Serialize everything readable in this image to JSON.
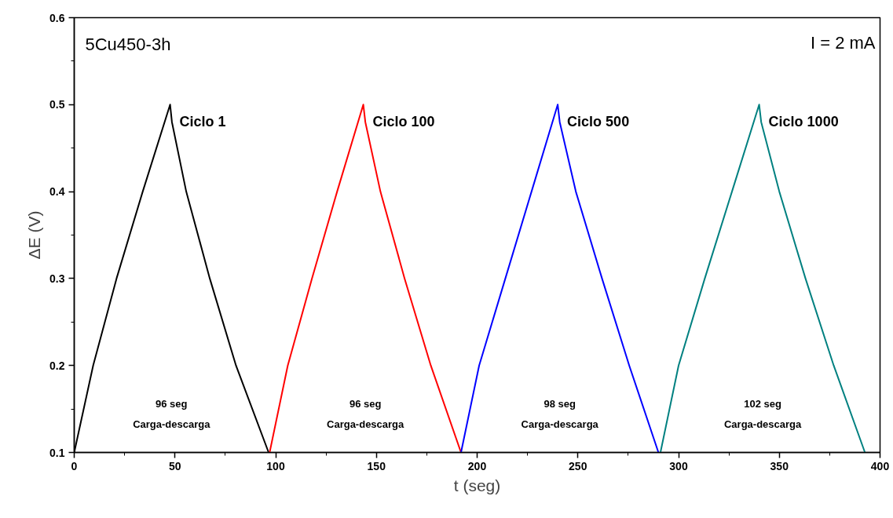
{
  "chart_data": {
    "type": "line",
    "title": "5Cu450-3h",
    "xlabel": "t (seg)",
    "ylabel": "ΔE (V)",
    "xlim": [
      0,
      400
    ],
    "ylim": [
      0.1,
      0.6
    ],
    "xticks": [
      0,
      50,
      100,
      150,
      200,
      250,
      300,
      350,
      400
    ],
    "yticks": [
      0.1,
      0.2,
      0.3,
      0.4,
      0.5,
      0.6
    ],
    "grid": false,
    "marker": "none",
    "line_style": "solid",
    "series": [
      {
        "name": "Ciclo 1",
        "color": "#000000",
        "x": [
          0,
          9.4,
          21,
          34,
          47.6,
          48.5,
          55.6,
          67.3,
          80.3,
          96.5
        ],
        "values": [
          0.1,
          0.2,
          0.3,
          0.4,
          0.5,
          0.48,
          0.4,
          0.3,
          0.2,
          0.1
        ]
      },
      {
        "name": "Ciclo 100",
        "color": "#ff0000",
        "x": [
          97,
          106,
          118,
          130.5,
          143.5,
          144.5,
          152,
          164,
          177,
          192
        ],
        "values": [
          0.1,
          0.2,
          0.3,
          0.4,
          0.5,
          0.48,
          0.4,
          0.3,
          0.2,
          0.1
        ]
      },
      {
        "name": "Ciclo 500",
        "color": "#0000ff",
        "x": [
          192,
          201,
          214,
          227,
          240,
          241,
          249,
          262,
          275.5,
          290
        ],
        "values": [
          0.1,
          0.2,
          0.3,
          0.4,
          0.5,
          0.48,
          0.4,
          0.3,
          0.2,
          0.1
        ]
      },
      {
        "name": "Ciclo 1000",
        "color": "#008080",
        "x": [
          291,
          300,
          313,
          326.5,
          340,
          341,
          350,
          363,
          377,
          392.5
        ],
        "values": [
          0.1,
          0.2,
          0.3,
          0.4,
          0.5,
          0.48,
          0.4,
          0.3,
          0.2,
          0.1
        ]
      }
    ],
    "annotations": [
      "I = 2 mA",
      "96 seg",
      "Carga-descarga",
      "96 seg",
      "Carga-descarga",
      "98 seg",
      "Carga-descarga",
      "102 seg",
      "Carga-descarga"
    ]
  }
}
